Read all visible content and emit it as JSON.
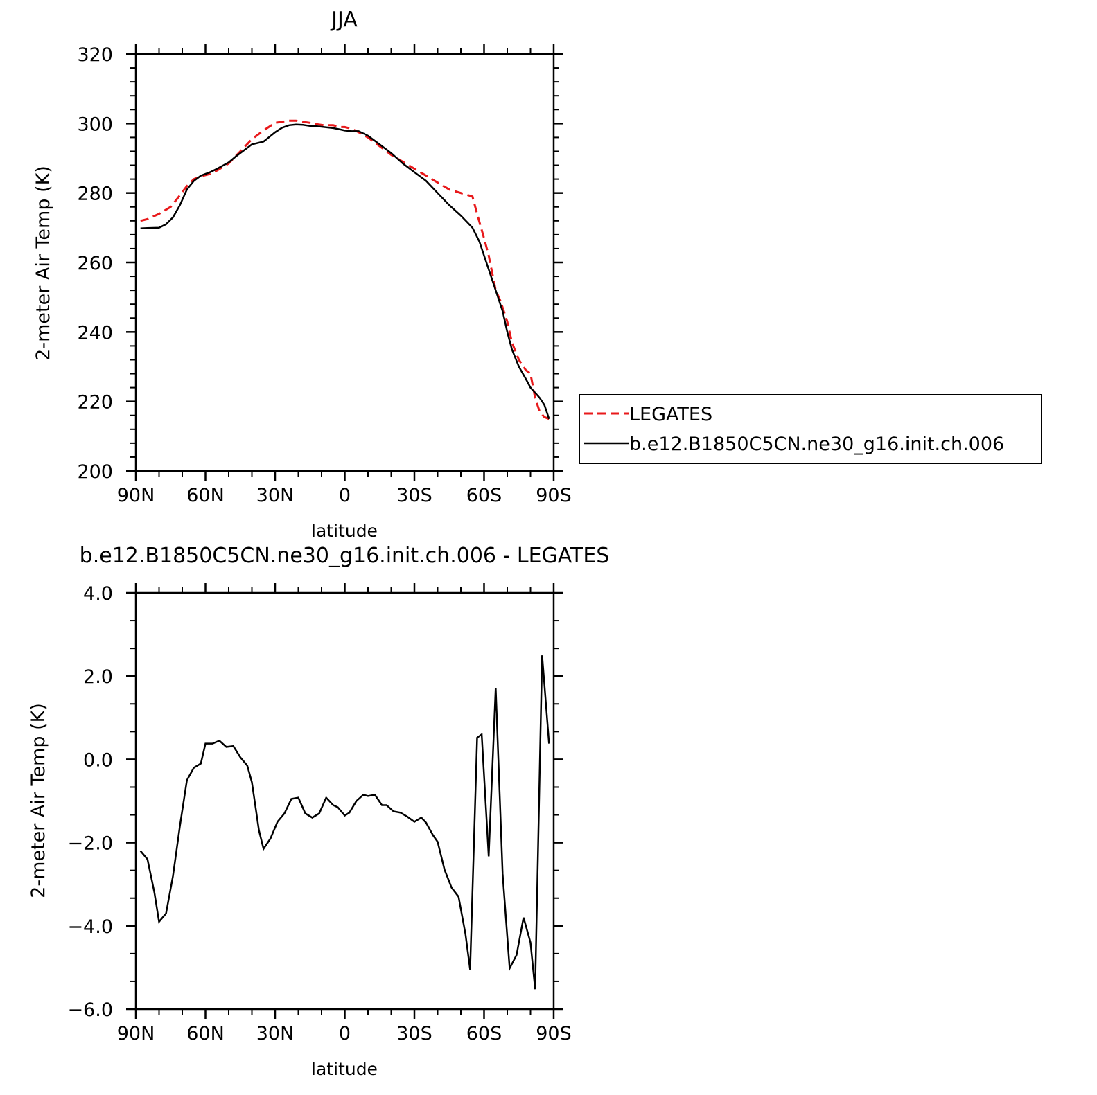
{
  "colors": {
    "legates": "#e8191b",
    "model": "#000000",
    "axis": "#000000"
  },
  "chart_data": [
    {
      "type": "line",
      "title": "JJA",
      "xlabel": "latitude",
      "ylabel": "2-meter Air Temp (K)",
      "xlim": [
        90,
        -90
      ],
      "ylim": [
        200,
        320
      ],
      "xticks": [
        90,
        60,
        30,
        0,
        -30,
        -60,
        -90
      ],
      "xtick_labels": [
        "90N",
        "60N",
        "30N",
        "0",
        "30S",
        "60S",
        "90S"
      ],
      "yticks": [
        200,
        220,
        240,
        260,
        280,
        300,
        320
      ],
      "ytick_labels": [
        "200",
        "220",
        "240",
        "260",
        "280",
        "300",
        "320"
      ],
      "legend_position": "right",
      "series": [
        {
          "name": "LEGATES",
          "style": "dashed",
          "color": "#e8191b",
          "x": [
            88,
            85,
            80,
            75,
            72,
            68,
            65,
            62,
            58,
            55,
            50,
            45,
            40,
            35,
            30,
            27,
            24,
            21,
            18,
            15,
            12,
            9,
            5,
            2,
            0,
            -3,
            -6,
            -10,
            -15,
            -20,
            -25,
            -30,
            -35,
            -40,
            -45,
            -50,
            -55,
            -57,
            -60,
            -62,
            -65,
            -67,
            -70,
            -72,
            -75,
            -78,
            -80,
            -82,
            -84,
            -86,
            -88
          ],
          "values": [
            272,
            272.5,
            274,
            276,
            278.5,
            282,
            284,
            284.8,
            285.5,
            286.5,
            288.5,
            292,
            295.5,
            298,
            300.2,
            300.5,
            300.8,
            300.8,
            300.5,
            300.2,
            299.8,
            299.5,
            299.5,
            299,
            299,
            298.5,
            297.5,
            296,
            293.5,
            291,
            289,
            287,
            285,
            283,
            281,
            280,
            279,
            274,
            267,
            262,
            252,
            249,
            243,
            237,
            232,
            229,
            228,
            221,
            217,
            215.5,
            215
          ]
        },
        {
          "name": "b.e12.B1850C5CN.ne30_g16.init.ch.006",
          "style": "solid",
          "color": "#000000",
          "x": [
            88,
            85,
            80,
            77,
            74,
            71,
            68,
            65,
            62,
            58,
            55,
            50,
            47,
            44,
            40,
            35,
            30,
            27,
            24,
            21,
            18,
            15,
            12,
            9,
            5,
            2,
            0,
            -3,
            -6,
            -10,
            -15,
            -20,
            -25,
            -30,
            -35,
            -40,
            -45,
            -50,
            -55,
            -58,
            -60,
            -62,
            -65,
            -68,
            -70,
            -72,
            -75,
            -78,
            -80,
            -82,
            -84,
            -86,
            -88
          ],
          "values": [
            269.8,
            269.9,
            270,
            271,
            273,
            276.5,
            281,
            283.5,
            285,
            286,
            287,
            288.8,
            290.5,
            292,
            294,
            294.8,
            297.5,
            298.8,
            299.5,
            299.7,
            299.6,
            299.3,
            299.2,
            299,
            298.7,
            298.3,
            298,
            297.8,
            297.8,
            296.5,
            294,
            291.5,
            288.5,
            286,
            283.5,
            280,
            276.5,
            273.5,
            270,
            266,
            262,
            258,
            252,
            246,
            240,
            235,
            230,
            226.5,
            224,
            222.5,
            221,
            219,
            215
          ]
        }
      ]
    },
    {
      "type": "line",
      "title": "b.e12.B1850C5CN.ne30_g16.init.ch.006 - LEGATES",
      "xlabel": "latitude",
      "ylabel": "2-meter Air Temp (K)",
      "xlim": [
        90,
        -90
      ],
      "ylim": [
        -6.0,
        4.0
      ],
      "xticks": [
        90,
        60,
        30,
        0,
        -30,
        -60,
        -90
      ],
      "xtick_labels": [
        "90N",
        "60N",
        "30N",
        "0",
        "30S",
        "60S",
        "90S"
      ],
      "yticks": [
        -6.0,
        -4.0,
        -2.0,
        0.0,
        2.0,
        4.0
      ],
      "ytick_labels": [
        "−6.0",
        "−4.0",
        "−2.0",
        "0.0",
        "2.0",
        "4.0"
      ],
      "series": [
        {
          "style": "solid",
          "color": "#000000",
          "x": [
            88,
            85,
            82,
            80,
            77,
            74,
            71,
            68,
            65,
            62,
            60,
            57,
            54,
            51,
            48,
            45,
            42,
            40,
            37,
            35,
            32,
            29,
            26,
            23,
            20,
            17,
            14,
            11,
            8,
            5,
            3,
            0,
            -2,
            -5,
            -8,
            -10,
            -13,
            -16,
            -18,
            -21,
            -24,
            -27,
            -30,
            -33,
            -35,
            -38,
            -40,
            -43,
            -46,
            -49,
            -52,
            -54,
            -57,
            -59,
            -62,
            -65,
            -68,
            -71,
            -74,
            -77,
            -80,
            -82,
            -85,
            -88
          ],
          "values": [
            -2.2,
            -2.4,
            -3.2,
            -3.9,
            -3.7,
            -2.8,
            -1.6,
            -0.5,
            -0.2,
            -0.1,
            0.38,
            0.38,
            0.45,
            0.3,
            0.32,
            0.05,
            -0.15,
            -0.55,
            -1.7,
            -2.15,
            -1.9,
            -1.5,
            -1.3,
            -0.95,
            -0.92,
            -1.3,
            -1.4,
            -1.3,
            -0.92,
            -1.1,
            -1.15,
            -1.35,
            -1.28,
            -1.0,
            -0.85,
            -0.88,
            -0.85,
            -1.1,
            -1.1,
            -1.25,
            -1.28,
            -1.38,
            -1.5,
            -1.4,
            -1.52,
            -1.82,
            -1.98,
            -2.65,
            -3.08,
            -3.3,
            -4.2,
            -5.05,
            0.52,
            0.6,
            -2.33,
            1.72,
            -2.75,
            -5.02,
            -4.7,
            -3.8,
            -4.4,
            -5.52,
            2.5,
            0.38
          ]
        }
      ]
    }
  ]
}
